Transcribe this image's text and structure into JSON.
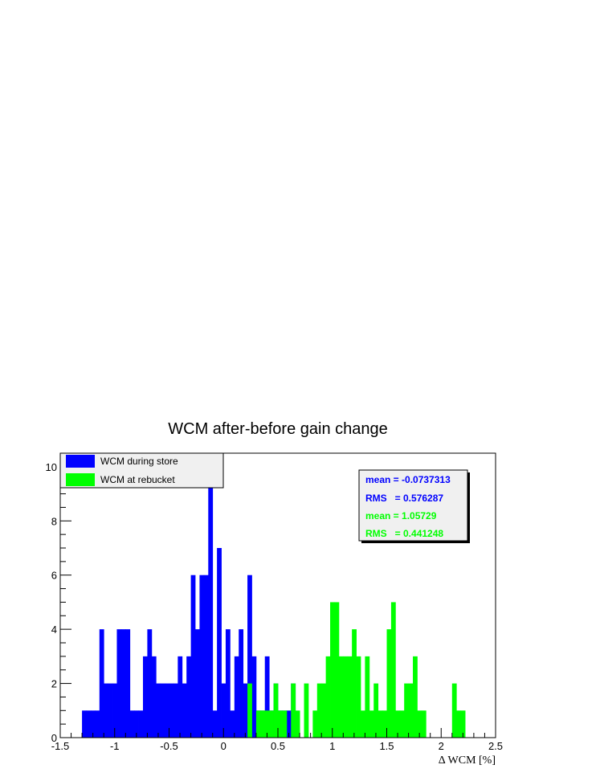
{
  "chart_data": {
    "type": "bar",
    "title": "WCM after-before gain change",
    "xlabel": "Δ WCM [%]",
    "ylabel": "",
    "xlim": [
      -1.5,
      2.5
    ],
    "ylim": [
      0,
      10.5
    ],
    "x_ticks": [
      -1.5,
      -1,
      -0.5,
      0,
      0.5,
      1,
      1.5,
      2,
      2.5
    ],
    "x_tick_labels": [
      "-1.5",
      "-1",
      "-0.5",
      "0",
      "0.5",
      "1",
      "1.5",
      "2",
      "2.5"
    ],
    "y_ticks": [
      0,
      2,
      4,
      6,
      8,
      10
    ],
    "y_tick_labels": [
      "0",
      "2",
      "4",
      "6",
      "8",
      "10"
    ],
    "grid": false,
    "legend": "top-left",
    "x_start": -1.3,
    "bin_width": 0.04,
    "series": [
      {
        "name": "WCM during store",
        "color": "#0000ff",
        "values": [
          1,
          1,
          1,
          1,
          4,
          2,
          2,
          2,
          4,
          4,
          4,
          1,
          1,
          1,
          3,
          4,
          3,
          2,
          2,
          2,
          2,
          2,
          3,
          2,
          3,
          6,
          4,
          6,
          6,
          10,
          1,
          7,
          2,
          4,
          1,
          3,
          4,
          2,
          6,
          3,
          1,
          1,
          3,
          1,
          2,
          1,
          1,
          1,
          2,
          0,
          0,
          0,
          0,
          0,
          0,
          0,
          0,
          0,
          0,
          0,
          0,
          0,
          0,
          0,
          0,
          0,
          0,
          0,
          0,
          0,
          0,
          0,
          0,
          0,
          0,
          0,
          0,
          0,
          0,
          0,
          0,
          0,
          0
        ]
      },
      {
        "name": "WCM at rebucket",
        "color": "#00ff00",
        "values": [
          0,
          0,
          0,
          0,
          0,
          0,
          0,
          0,
          0,
          0,
          0,
          0,
          0,
          0,
          0,
          0,
          0,
          0,
          0,
          0,
          0,
          0,
          0,
          0,
          0,
          0,
          0,
          0,
          0,
          0,
          0,
          0,
          0,
          0,
          0,
          0,
          0,
          0,
          2,
          0,
          1,
          1,
          1,
          1,
          2,
          1,
          1,
          0,
          2,
          1,
          0,
          2,
          0,
          1,
          2,
          2,
          3,
          5,
          5,
          3,
          3,
          3,
          4,
          3,
          1,
          3,
          1,
          2,
          1,
          1,
          4,
          5,
          1,
          1,
          2,
          2,
          3,
          1,
          1,
          0,
          0,
          0,
          0,
          0,
          0,
          2,
          1,
          1
        ]
      }
    ],
    "stats": [
      {
        "label": "mean = -0.0737313",
        "color": "#0000ff"
      },
      {
        "label": "RMS   = 0.576287",
        "color": "#0000ff"
      },
      {
        "label": "mean = 1.05729",
        "color": "#00ff00"
      },
      {
        "label": "RMS   = 0.441248",
        "color": "#00ff00"
      }
    ]
  }
}
